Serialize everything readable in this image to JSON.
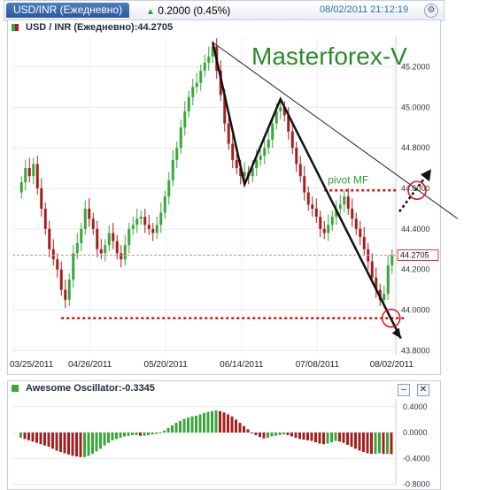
{
  "header": {
    "tab_label": "USD/INR (Ежедневно)",
    "change": "0.2000 (0.45%)",
    "timestamp": "08/02/2011 21:12:19",
    "up_color": "#2e9e2e"
  },
  "main_panel": {
    "title": "USD / INR (Ежедневно):44.2705",
    "watermark": "Masterforex-V",
    "pivot_label": "pivot MF",
    "last_price_label": "44.2705",
    "up_color": "#3aa63a",
    "down_color": "#a51f1f"
  },
  "osc_panel": {
    "title": "Awesome Oscillator:-0.3345"
  },
  "chart_data": [
    {
      "type": "candlestick",
      "title": "USD / INR (Ежедневно):44.2705",
      "x_tick_labels": [
        "03/25/2011",
        "04/26/2011",
        "05/20/2011",
        "06/14/2011",
        "07/08/2011",
        "08/02/2011"
      ],
      "y_tick_labels": [
        "43.8000",
        "44.0000",
        "44.2000",
        "44.4000",
        "44.6000",
        "44.8000",
        "45.0000",
        "45.2000"
      ],
      "ylim": [
        43.78,
        45.35
      ],
      "last_price": 44.2705,
      "grid": true,
      "closes": [
        44.63,
        44.7,
        44.66,
        44.72,
        44.6,
        44.5,
        44.4,
        44.3,
        44.25,
        44.2,
        44.1,
        44.05,
        44.15,
        44.28,
        44.33,
        44.4,
        44.5,
        44.45,
        44.4,
        44.3,
        44.28,
        44.32,
        44.38,
        44.34,
        44.28,
        44.25,
        44.32,
        44.4,
        44.42,
        44.45,
        44.46,
        44.42,
        44.4,
        44.38,
        44.42,
        44.48,
        44.56,
        44.64,
        44.74,
        44.8,
        44.9,
        44.98,
        45.05,
        45.1,
        45.12,
        45.18,
        45.22,
        45.25,
        45.3,
        45.18,
        45.06,
        44.92,
        44.82,
        44.74,
        44.7,
        44.66,
        44.68,
        44.66,
        44.7,
        44.74,
        44.76,
        44.8,
        44.84,
        44.92,
        44.98,
        45.0,
        44.96,
        44.88,
        44.8,
        44.72,
        44.66,
        44.58,
        44.52,
        44.5,
        44.46,
        44.4,
        44.38,
        44.42,
        44.46,
        44.5,
        44.52,
        44.56,
        44.5,
        44.45,
        44.4,
        44.36,
        44.3,
        44.24,
        44.16,
        44.1,
        44.05,
        44.08,
        44.22,
        44.27
      ],
      "support_level": 43.96,
      "pivot_level": 44.59,
      "annotations": [
        "Masterforex-V",
        "pivot MF"
      ]
    },
    {
      "type": "bar",
      "title": "Awesome Oscillator:-0.3345",
      "y_tick_labels": [
        "0.4000",
        "0.0000",
        "-0.4000",
        "-0.8000"
      ],
      "ylim": [
        -0.82,
        0.52
      ],
      "values": [
        -0.08,
        -0.1,
        -0.12,
        -0.14,
        -0.16,
        -0.18,
        -0.2,
        -0.22,
        -0.25,
        -0.28,
        -0.3,
        -0.32,
        -0.34,
        -0.36,
        -0.37,
        -0.38,
        -0.38,
        -0.36,
        -0.33,
        -0.29,
        -0.25,
        -0.2,
        -0.16,
        -0.12,
        -0.1,
        -0.08,
        -0.06,
        -0.05,
        -0.04,
        -0.04,
        -0.05,
        -0.05,
        -0.04,
        -0.03,
        -0.02,
        0.0,
        0.03,
        0.07,
        0.11,
        0.15,
        0.18,
        0.21,
        0.23,
        0.25,
        0.26,
        0.28,
        0.3,
        0.32,
        0.33,
        0.34,
        0.33,
        0.31,
        0.28,
        0.25,
        0.2,
        0.15,
        0.1,
        0.05,
        0.0,
        -0.04,
        -0.07,
        -0.09,
        -0.08,
        -0.06,
        -0.05,
        -0.04,
        -0.03,
        -0.04,
        -0.06,
        -0.08,
        -0.1,
        -0.11,
        -0.12,
        -0.13,
        -0.15,
        -0.17,
        -0.18,
        -0.17,
        -0.15,
        -0.13,
        -0.14,
        -0.16,
        -0.19,
        -0.22,
        -0.25,
        -0.28,
        -0.3,
        -0.32,
        -0.33,
        -0.33,
        -0.32,
        -0.33,
        -0.33,
        -0.3345
      ],
      "bar_colors": [
        "#3aa63a",
        "#a51f1f"
      ]
    }
  ]
}
